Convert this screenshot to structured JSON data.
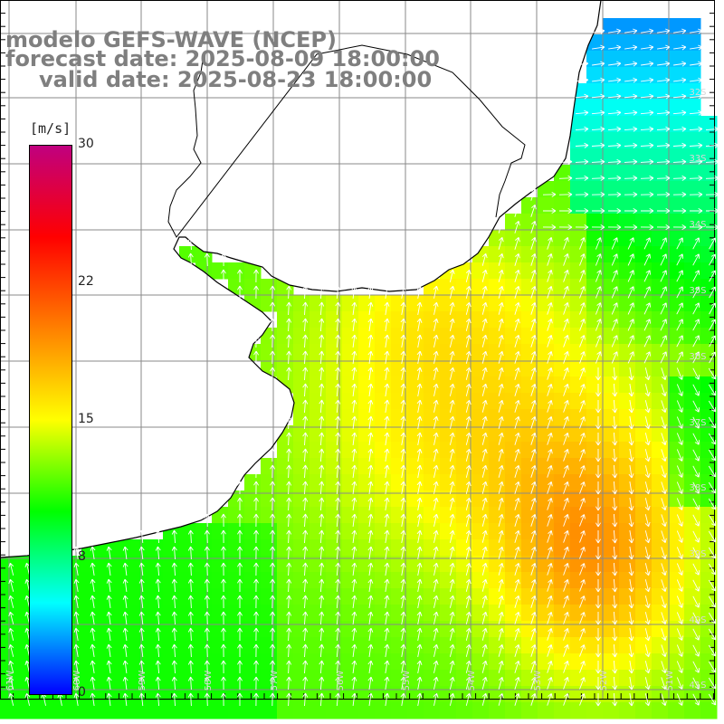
{
  "title": {
    "line1": "modelo GEFS-WAVE (NCEP)",
    "line2": "forecast date: 2025-08-09 18:00:00",
    "line3": "valid date: 2025-08-23 18:00:00"
  },
  "colorbar": {
    "unit": "[m/s]",
    "min": 0,
    "max": 30,
    "ticks": [
      "30",
      "22",
      "15",
      "8",
      "0"
    ],
    "colors": [
      "#0000ff",
      "#00ffff",
      "#00ff00",
      "#ffff00",
      "#ff8000",
      "#ff0000",
      "#c0007f"
    ]
  },
  "map": {
    "lat_labels": [
      "32S",
      "33S",
      "34S",
      "35S",
      "36S",
      "37S",
      "38S",
      "39S",
      "40S",
      "41S"
    ],
    "lon_labels": [
      "61W",
      "60W",
      "59W",
      "58W",
      "57W",
      "56W",
      "55W",
      "54W",
      "53W",
      "52W",
      "51W"
    ],
    "land_color": "#ffffff",
    "coast_color": "#000000",
    "grid_color": "#8a8a8a",
    "arrow_color": "#ffffff"
  }
}
